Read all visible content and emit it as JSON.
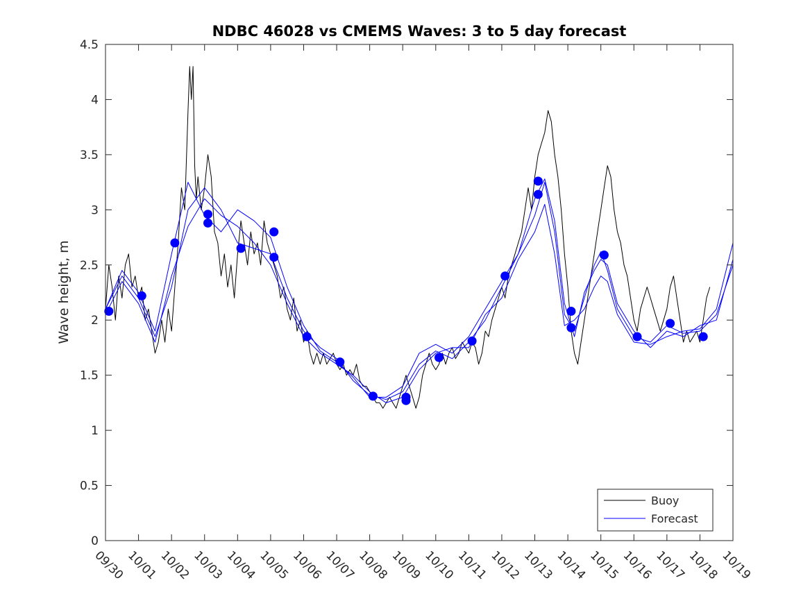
{
  "chart_data": {
    "type": "line",
    "title": "NDBC 46028 vs CMEMS Waves: 3 to 5 day forecast",
    "xlabel": "",
    "ylabel": "Wave height, m",
    "xlim": [
      0,
      19
    ],
    "ylim": [
      0,
      4.5
    ],
    "x_unit": "days since 09/30 00:00",
    "grid": false,
    "legend_position": "bottom-right",
    "categories": [
      "09/30",
      "10/01",
      "10/02",
      "10/03",
      "10/04",
      "10/05",
      "10/06",
      "10/07",
      "10/08",
      "10/09",
      "10/10",
      "10/11",
      "10/12",
      "10/13",
      "10/14",
      "10/15",
      "10/16",
      "10/17",
      "10/18",
      "10/19"
    ],
    "yticks": [
      "0",
      "0.5",
      "1",
      "1.5",
      "2",
      "2.5",
      "3",
      "3.5",
      "4",
      "4.5"
    ],
    "series": [
      {
        "name": "Buoy",
        "color": "#000000",
        "x": [
          0.0,
          0.1,
          0.2,
          0.3,
          0.4,
          0.5,
          0.6,
          0.7,
          0.8,
          0.9,
          1.0,
          1.1,
          1.2,
          1.3,
          1.4,
          1.5,
          1.6,
          1.7,
          1.8,
          1.9,
          2.0,
          2.1,
          2.2,
          2.3,
          2.4,
          2.5,
          2.55,
          2.6,
          2.65,
          2.7,
          2.75,
          2.8,
          2.9,
          3.0,
          3.1,
          3.2,
          3.3,
          3.4,
          3.5,
          3.6,
          3.7,
          3.8,
          3.9,
          4.0,
          4.1,
          4.2,
          4.3,
          4.4,
          4.5,
          4.6,
          4.7,
          4.8,
          4.9,
          5.0,
          5.1,
          5.2,
          5.3,
          5.4,
          5.5,
          5.6,
          5.7,
          5.8,
          5.9,
          6.0,
          6.1,
          6.2,
          6.3,
          6.4,
          6.5,
          6.6,
          6.7,
          6.8,
          6.9,
          7.0,
          7.1,
          7.2,
          7.3,
          7.4,
          7.5,
          7.6,
          7.7,
          7.8,
          7.9,
          8.0,
          8.1,
          8.2,
          8.3,
          8.4,
          8.5,
          8.6,
          8.7,
          8.8,
          8.9,
          9.0,
          9.1,
          9.2,
          9.3,
          9.4,
          9.5,
          9.6,
          9.7,
          9.8,
          9.9,
          10.0,
          10.1,
          10.2,
          10.3,
          10.4,
          10.5,
          10.6,
          10.7,
          10.8,
          10.9,
          11.0,
          11.1,
          11.2,
          11.3,
          11.4,
          11.5,
          11.6,
          11.7,
          11.8,
          11.9,
          12.0,
          12.1,
          12.2,
          12.3,
          12.4,
          12.5,
          12.6,
          12.7,
          12.8,
          12.9,
          13.0,
          13.1,
          13.2,
          13.3,
          13.4,
          13.5,
          13.6,
          13.7,
          13.8,
          13.9,
          14.0,
          14.1,
          14.2,
          14.3,
          14.4,
          14.5,
          14.6,
          14.7,
          14.8,
          14.9,
          15.0,
          15.1,
          15.2,
          15.3,
          15.4,
          15.5,
          15.6,
          15.7,
          15.8,
          15.9,
          16.0,
          16.1,
          16.2,
          16.3,
          16.4,
          16.5,
          16.6,
          16.7,
          16.8,
          16.9,
          17.0,
          17.1,
          17.2,
          17.3,
          17.4,
          17.5,
          17.6,
          17.7,
          17.8,
          17.9,
          18.0,
          18.1,
          18.2,
          18.3
        ],
        "values": [
          2.1,
          2.5,
          2.3,
          2.0,
          2.4,
          2.2,
          2.5,
          2.6,
          2.3,
          2.4,
          2.2,
          2.3,
          2.0,
          2.1,
          1.9,
          1.7,
          1.8,
          2.0,
          1.8,
          2.1,
          1.9,
          2.3,
          2.7,
          3.2,
          3.0,
          3.9,
          4.3,
          4.0,
          4.3,
          3.4,
          3.1,
          3.3,
          3.0,
          3.2,
          3.5,
          3.3,
          2.8,
          2.7,
          2.4,
          2.6,
          2.3,
          2.5,
          2.2,
          2.6,
          2.9,
          2.7,
          2.5,
          2.8,
          2.6,
          2.7,
          2.5,
          2.9,
          2.7,
          2.6,
          2.5,
          2.4,
          2.2,
          2.3,
          2.1,
          2.0,
          2.2,
          1.9,
          2.0,
          1.8,
          1.9,
          1.7,
          1.6,
          1.7,
          1.6,
          1.7,
          1.6,
          1.65,
          1.7,
          1.6,
          1.55,
          1.6,
          1.5,
          1.55,
          1.5,
          1.6,
          1.45,
          1.4,
          1.4,
          1.35,
          1.3,
          1.25,
          1.25,
          1.2,
          1.25,
          1.3,
          1.25,
          1.2,
          1.3,
          1.4,
          1.5,
          1.4,
          1.3,
          1.2,
          1.3,
          1.5,
          1.6,
          1.7,
          1.6,
          1.55,
          1.6,
          1.7,
          1.6,
          1.7,
          1.75,
          1.65,
          1.7,
          1.8,
          1.75,
          1.7,
          1.8,
          1.75,
          1.6,
          1.7,
          1.9,
          1.85,
          2.0,
          2.1,
          2.2,
          2.3,
          2.2,
          2.4,
          2.5,
          2.6,
          2.7,
          2.8,
          3.0,
          3.2,
          3.0,
          3.3,
          3.5,
          3.6,
          3.7,
          3.9,
          3.8,
          3.5,
          3.3,
          3.0,
          2.6,
          2.3,
          1.9,
          1.7,
          1.6,
          1.8,
          2.0,
          2.2,
          2.4,
          2.6,
          2.8,
          3.0,
          3.2,
          3.4,
          3.3,
          3.0,
          2.8,
          2.7,
          2.5,
          2.4,
          2.2,
          2.0,
          1.9,
          2.1,
          2.2,
          2.3,
          2.2,
          2.1,
          2.0,
          1.9,
          2.0,
          2.1,
          2.3,
          2.4,
          2.2,
          2.0,
          1.8,
          1.9,
          1.8,
          1.85,
          1.9,
          1.8,
          2.0,
          2.2,
          2.3
        ]
      },
      {
        "name": "Forecast",
        "color": "#0000ff",
        "x": [
          0.0,
          0.5,
          1.0,
          1.5,
          2.0,
          2.5,
          3.0,
          3.5,
          4.0,
          4.5,
          5.0,
          5.5,
          6.0,
          6.5,
          7.0,
          7.5,
          8.0,
          8.5,
          9.0,
          9.5,
          10.0,
          10.5,
          11.0,
          11.5,
          12.0,
          12.5,
          13.0,
          13.3,
          13.6,
          13.9,
          14.2,
          14.5,
          14.8,
          15.0,
          15.2,
          15.5,
          16.0,
          16.5,
          17.0,
          17.5,
          18.0,
          18.5,
          19.0
        ],
        "values": [
          2.1,
          2.4,
          2.2,
          1.85,
          2.3,
          3.0,
          3.2,
          3.0,
          2.7,
          2.65,
          2.6,
          2.2,
          1.9,
          1.75,
          1.65,
          1.45,
          1.32,
          1.28,
          1.35,
          1.6,
          1.72,
          1.65,
          1.8,
          2.0,
          2.3,
          2.6,
          2.95,
          3.25,
          2.8,
          2.05,
          1.9,
          2.2,
          2.5,
          2.62,
          2.45,
          2.1,
          1.85,
          1.8,
          1.95,
          1.88,
          1.9,
          2.05,
          2.5
        ]
      },
      {
        "name": "Forecast",
        "color": "#0000ff",
        "x": [
          0.0,
          0.5,
          1.0,
          1.5,
          2.0,
          2.5,
          3.0,
          3.5,
          4.0,
          4.5,
          5.0,
          5.5,
          6.0,
          6.5,
          7.0,
          7.5,
          8.0,
          8.5,
          9.0,
          9.5,
          10.0,
          10.5,
          11.0,
          11.5,
          12.0,
          12.5,
          13.0,
          13.3,
          13.6,
          13.9,
          14.2,
          14.5,
          14.8,
          15.0,
          15.2,
          15.5,
          16.0,
          16.5,
          17.0,
          17.5,
          18.0,
          18.5,
          19.0
        ],
        "values": [
          2.05,
          2.35,
          2.15,
          1.8,
          2.4,
          2.85,
          3.1,
          2.95,
          2.85,
          2.7,
          2.5,
          2.15,
          1.85,
          1.7,
          1.6,
          1.5,
          1.35,
          1.25,
          1.3,
          1.55,
          1.7,
          1.75,
          1.75,
          2.05,
          2.2,
          2.55,
          2.8,
          3.05,
          2.6,
          1.95,
          2.0,
          2.1,
          2.3,
          2.4,
          2.35,
          2.05,
          1.8,
          1.78,
          1.85,
          1.9,
          1.92,
          2.1,
          2.7
        ]
      },
      {
        "name": "Forecast",
        "color": "#0000ff",
        "x": [
          0.0,
          0.5,
          1.0,
          1.5,
          2.0,
          2.5,
          3.0,
          3.5,
          4.0,
          4.5,
          5.0,
          5.5,
          6.0,
          6.5,
          7.0,
          7.5,
          8.0,
          8.5,
          9.0,
          9.5,
          10.0,
          10.5,
          11.0,
          11.5,
          12.0,
          12.5,
          13.0,
          13.3,
          13.6,
          13.9,
          14.2,
          14.5,
          14.8,
          15.0,
          15.2,
          15.5,
          16.0,
          16.5,
          17.0,
          17.5,
          18.0,
          18.5,
          19.0
        ],
        "values": [
          2.1,
          2.45,
          2.25,
          1.9,
          2.6,
          3.25,
          2.95,
          2.8,
          3.0,
          2.9,
          2.75,
          2.3,
          1.95,
          1.72,
          1.62,
          1.48,
          1.3,
          1.3,
          1.4,
          1.7,
          1.78,
          1.7,
          1.85,
          2.1,
          2.35,
          2.6,
          3.1,
          3.28,
          2.9,
          2.15,
          1.85,
          2.25,
          2.45,
          2.55,
          2.5,
          2.15,
          1.9,
          1.75,
          1.9,
          1.85,
          1.95,
          2.0,
          2.55
        ]
      }
    ],
    "markers": {
      "name": "Forecast start points",
      "color": "#0000ff",
      "x": [
        0.1,
        1.1,
        2.1,
        3.1,
        3.1,
        4.1,
        5.1,
        5.1,
        6.1,
        7.1,
        8.1,
        9.1,
        9.1,
        10.1,
        11.1,
        12.1,
        13.1,
        13.1,
        14.1,
        14.1,
        15.1,
        16.1,
        17.1,
        18.1
      ],
      "values": [
        2.08,
        2.22,
        2.7,
        2.96,
        2.88,
        2.65,
        2.8,
        2.57,
        1.85,
        1.62,
        1.31,
        1.27,
        1.3,
        1.66,
        1.81,
        2.4,
        3.26,
        3.14,
        2.08,
        1.93,
        2.59,
        1.85,
        1.97,
        1.85
      ]
    },
    "legend": [
      "Buoy",
      "Forecast"
    ]
  }
}
